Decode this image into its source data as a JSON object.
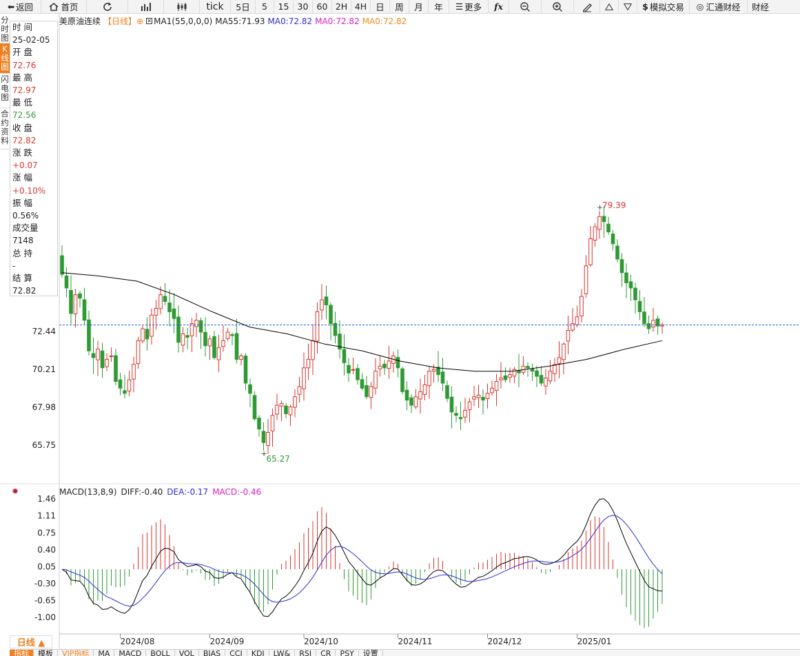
{
  "toolbar": {
    "back": "返回",
    "home": "首页",
    "tick": "tick",
    "d5": "5日",
    "m5": "5",
    "m15": "15",
    "m30": "30",
    "m60": "60",
    "h2": "2H",
    "h4": "4H",
    "day": "日",
    "week": "周",
    "month": "月",
    "year": "年",
    "more": "更多",
    "sim": "模拟交易",
    "fx": "汇通财经",
    "fin": "财经"
  },
  "leftbar": [
    "分时图",
    "K线图",
    "闪电图",
    "合约资料"
  ],
  "info": {
    "items": [
      {
        "label": "时 间",
        "value": "25-02-05",
        "color": "#222222"
      },
      {
        "label": "开 盘",
        "value": "72.76",
        "color": "#d9352b"
      },
      {
        "label": "最 高",
        "value": "72.97",
        "color": "#d9352b"
      },
      {
        "label": "最 低",
        "value": "72.56",
        "color": "#2e9a33"
      },
      {
        "label": "收 盘",
        "value": "72.82",
        "color": "#d9352b"
      },
      {
        "label": "涨 跌",
        "value": "+0.07",
        "color": "#d9352b"
      },
      {
        "label": "涨 幅",
        "value": "+0.10%",
        "color": "#d9352b"
      },
      {
        "label": "振 幅",
        "value": "0.56%",
        "color": "#222222"
      },
      {
        "label": "成交量",
        "value": "7148",
        "color": "#222222"
      },
      {
        "label": "总 持",
        "value": "-",
        "color": "#222222"
      },
      {
        "label": "结 算",
        "value": "72.82",
        "color": "#222222"
      }
    ]
  },
  "title": {
    "name": "美原油连续",
    "period": "【日线】",
    "ma1": "MA1(55,0,0,0)",
    "ma55": "MA55:71.93",
    "ma0a": "MA0:72.82",
    "ma0b": "MA0:72.82",
    "ma0c": "MA0:72.82"
  },
  "macd": {
    "name": "MACD(13,8,9)",
    "diff": "DIFF:-0.40",
    "dea": "DEA:-0.17",
    "macd": "MACD:-0.46"
  },
  "period_button": "日线 ▲",
  "bottom_tabs": [
    "指标",
    "模板",
    "VIP指标",
    "MA",
    "MACD",
    "BOLL",
    "VOL",
    "BIAS",
    "CCI",
    "KDJ",
    "LW&",
    "RSI",
    "CR",
    "PSY",
    "设置"
  ],
  "colors": {
    "up": "#d9352b",
    "down": "#2e9a33",
    "ma": "#000000",
    "diff": "#000000",
    "dea": "#2b2bd6",
    "last": "#1a5fd1"
  },
  "chart_data": [
    {
      "type": "candlestick",
      "title": "美原油连续 日线",
      "y_ticks": [
        72.44,
        70.21,
        67.98,
        65.75
      ],
      "x_ticks": [
        "2024/08",
        "2024/09",
        "2024/10",
        "2024/11",
        "2024/12",
        "2025/01"
      ],
      "last_price": 72.82,
      "annotations": {
        "high": "79.39",
        "low": "65.27"
      },
      "closes": [
        75.8,
        75.0,
        73.5,
        74.6,
        74.4,
        73.1,
        71.3,
        70.9,
        71.4,
        70.3,
        70.8,
        71.0,
        69.5,
        69.1,
        68.8,
        69.6,
        70.5,
        71.9,
        72.6,
        72.0,
        73.4,
        73.8,
        74.6,
        74.2,
        73.6,
        73.2,
        71.8,
        72.3,
        72.1,
        72.9,
        73.1,
        72.4,
        71.6,
        72.0,
        70.9,
        71.5,
        71.9,
        72.4,
        72.2,
        70.8,
        71.0,
        69.4,
        68.8,
        67.3,
        66.7,
        65.9,
        66.5,
        67.5,
        68.1,
        68.2,
        67.6,
        68.0,
        68.6,
        69.2,
        70.3,
        70.8,
        71.9,
        73.6,
        74.3,
        74.0,
        72.9,
        72.2,
        71.4,
        70.6,
        70.0,
        70.2,
        69.6,
        69.1,
        68.6,
        69.2,
        70.1,
        70.4,
        70.3,
        70.7,
        71.0,
        70.3,
        68.9,
        68.4,
        68.1,
        68.6,
        68.9,
        69.3,
        70.1,
        70.2,
        69.9,
        69.4,
        68.5,
        67.7,
        67.5,
        67.3,
        67.8,
        68.3,
        68.6,
        68.7,
        68.4,
        68.8,
        69.1,
        69.5,
        69.7,
        69.6,
        69.9,
        70.2,
        70.0,
        70.4,
        70.3,
        70.1,
        69.8,
        69.4,
        69.7,
        70.1,
        70.5,
        70.9,
        71.7,
        72.5,
        72.9,
        73.3,
        74.5,
        76.3,
        77.9,
        78.6,
        79.2,
        78.9,
        78.3,
        77.6,
        76.7,
        75.9,
        75.3,
        75.0,
        74.3,
        73.6,
        72.9,
        72.6,
        73.1,
        72.76,
        72.82
      ],
      "ma55_approx": [
        75.9,
        75.7,
        75.4,
        74.6,
        73.6,
        72.7,
        72.3,
        71.7,
        71.3,
        70.7,
        70.3,
        70.1,
        70.1,
        70.4,
        70.8,
        71.4,
        71.9
      ]
    },
    {
      "type": "bar+line",
      "title": "MACD(13,8,9)",
      "series": [
        {
          "name": "DIFF",
          "last": -0.4
        },
        {
          "name": "DEA",
          "last": -0.17
        },
        {
          "name": "MACD",
          "last": -0.46
        }
      ],
      "y_ticks": [
        1.46,
        1.11,
        0.75,
        0.4,
        0.05,
        -0.3,
        -0.65,
        -1.0
      ]
    }
  ]
}
